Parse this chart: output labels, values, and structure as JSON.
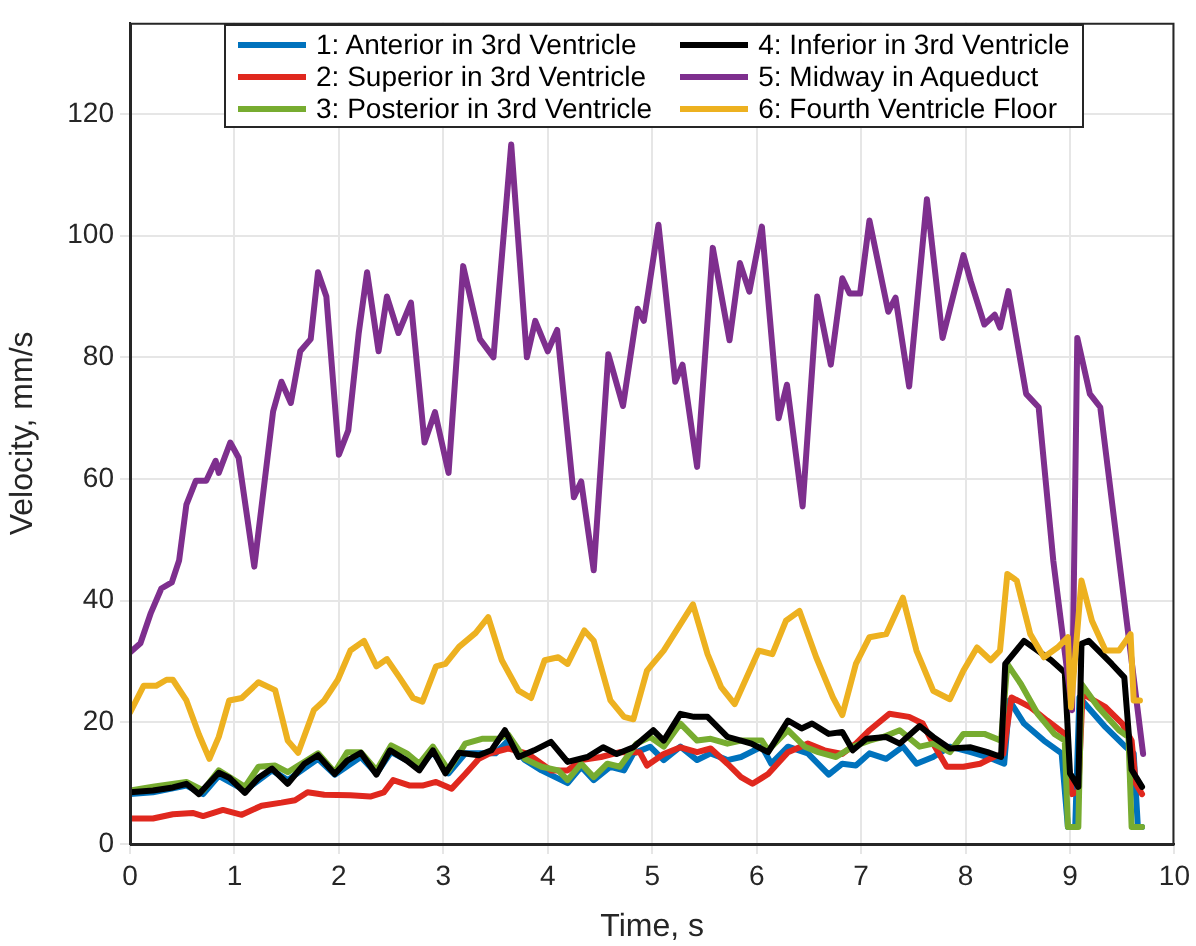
{
  "chart_data": {
    "type": "line",
    "xlabel": "Time, s",
    "ylabel": "Velocity, mm/s",
    "xlim": [
      0,
      10
    ],
    "xticks": [
      0,
      1,
      2,
      3,
      4,
      5,
      6,
      7,
      8,
      9,
      10
    ],
    "ylim": [
      0,
      135
    ],
    "yticks": [
      0,
      20,
      40,
      60,
      80,
      100,
      120
    ],
    "grid": true,
    "legend": "top",
    "line_style": "solid",
    "marker": "none",
    "series": [
      {
        "name": "1: Anterior in 3rd Ventricle",
        "color": "#0072bd",
        "x": [
          0,
          0.22,
          0.54,
          0.7,
          0.85,
          1.1,
          1.36,
          1.51,
          1.8,
          1.96,
          2.21,
          2.36,
          2.5,
          2.77,
          2.9,
          3.05,
          3.21,
          3.5,
          3.62,
          3.78,
          3.94,
          4.19,
          4.32,
          4.44,
          4.6,
          4.73,
          4.82,
          4.98,
          5.11,
          5.27,
          5.43,
          5.56,
          5.72,
          5.85,
          6.05,
          6.14,
          6.3,
          6.49,
          6.69,
          6.82,
          6.95,
          7.08,
          7.24,
          7.4,
          7.53,
          7.69,
          7.85,
          8.05,
          8.21,
          8.37,
          8.42,
          8.56,
          8.75,
          8.92,
          8.98,
          9.05,
          9.09,
          9.34,
          9.53,
          9.61,
          9.65,
          9.69
        ],
        "values": [
          8.2,
          8.5,
          9.6,
          8.2,
          11.2,
          8.8,
          12.1,
          10.5,
          14,
          11.4,
          14.3,
          11.6,
          15.1,
          12.7,
          15.1,
          11.6,
          14.9,
          14.9,
          17,
          13.8,
          12.1,
          10,
          12.7,
          10.5,
          12.7,
          12.1,
          14.9,
          16,
          13.8,
          16,
          13.8,
          14.9,
          13.8,
          14.3,
          16,
          13.2,
          16,
          14.9,
          11.4,
          13.2,
          12.9,
          14.9,
          14,
          16,
          13.2,
          14.3,
          16,
          15.1,
          14.3,
          13.2,
          23.6,
          19.8,
          17,
          14.9,
          2.8,
          2.8,
          24.1,
          19.2,
          16,
          14.9,
          2.8,
          2.8
        ]
      },
      {
        "name": "2: Superior in 3rd Ventricle",
        "color": "#e0281e",
        "x": [
          0,
          0.22,
          0.41,
          0.6,
          0.7,
          0.89,
          1.07,
          1.26,
          1.45,
          1.58,
          1.7,
          1.86,
          2.11,
          2.3,
          2.43,
          2.52,
          2.68,
          2.8,
          2.93,
          3.08,
          3.21,
          3.34,
          3.43,
          3.62,
          3.81,
          4.03,
          4.19,
          4.32,
          4.51,
          4.69,
          4.88,
          4.95,
          5.11,
          5.27,
          5.43,
          5.56,
          5.72,
          5.85,
          5.96,
          6.11,
          6.3,
          6.49,
          6.65,
          6.82,
          6.95,
          7.08,
          7.27,
          7.46,
          7.59,
          7.69,
          7.82,
          7.98,
          8.14,
          8.27,
          8.36,
          8.44,
          8.62,
          8.78,
          8.95,
          9.02,
          9.08,
          9.12,
          9.34,
          9.5,
          9.59,
          9.63,
          9.69
        ],
        "values": [
          4.2,
          4.2,
          4.9,
          5.1,
          4.6,
          5.6,
          4.8,
          6.3,
          6.8,
          7.2,
          8.5,
          8.1,
          8,
          7.8,
          8.5,
          10.5,
          9.6,
          9.6,
          10.2,
          9.1,
          11.5,
          14,
          14.8,
          15.7,
          14.8,
          12.1,
          12.1,
          13.8,
          14.3,
          15.1,
          15.1,
          12.9,
          14.8,
          15.9,
          15.1,
          15.7,
          13.2,
          11,
          9.9,
          11.5,
          15.1,
          16.5,
          15.4,
          14.8,
          16.5,
          18.7,
          21.4,
          20.9,
          19.8,
          16.5,
          12.7,
          12.7,
          13.2,
          14.3,
          14.8,
          24.1,
          22.5,
          20.3,
          18.1,
          8.2,
          8.7,
          24.7,
          22.5,
          19.8,
          17,
          9.9,
          8.2
        ]
      },
      {
        "name": "3: Posterior in 3rd Ventricle",
        "color": "#77ac30",
        "x": [
          0,
          0.22,
          0.54,
          0.7,
          0.85,
          1.1,
          1.23,
          1.39,
          1.51,
          1.64,
          1.8,
          1.96,
          2.08,
          2.21,
          2.36,
          2.5,
          2.65,
          2.77,
          2.9,
          3.05,
          3.21,
          3.37,
          3.53,
          3.62,
          3.78,
          3.94,
          4.1,
          4.19,
          4.32,
          4.44,
          4.57,
          4.69,
          4.85,
          4.98,
          5.11,
          5.27,
          5.43,
          5.56,
          5.72,
          5.85,
          6.05,
          6.11,
          6.3,
          6.46,
          6.59,
          6.76,
          6.92,
          7.08,
          7.21,
          7.37,
          7.56,
          7.69,
          7.85,
          7.98,
          8.18,
          8.34,
          8.4,
          8.53,
          8.69,
          8.85,
          8.95,
          8.98,
          9.08,
          9.11,
          9.27,
          9.47,
          9.56,
          9.59,
          9.69
        ],
        "values": [
          8.8,
          9.4,
          10.2,
          8.8,
          12.1,
          9.4,
          12.7,
          12.9,
          11.8,
          13.2,
          14.9,
          11.8,
          15.1,
          15.1,
          12.1,
          16.2,
          14.9,
          13.2,
          16,
          12.1,
          16.5,
          17.3,
          17.3,
          18,
          14,
          12.7,
          12.1,
          10.5,
          13.2,
          11,
          13.2,
          12.7,
          16.5,
          17.6,
          16,
          19.8,
          17,
          17.3,
          16.5,
          17,
          17,
          15.4,
          18.7,
          16,
          15.1,
          14.3,
          16,
          17,
          17.6,
          18.7,
          16,
          16.5,
          15.1,
          18.1,
          18.1,
          17,
          29.6,
          26.3,
          21.4,
          18.1,
          17,
          2.8,
          2.8,
          26.3,
          22.5,
          18.7,
          17.6,
          2.8,
          2.8
        ]
      },
      {
        "name": "4: Inferior in 3rd Ventricle",
        "color": "#000000",
        "x": [
          0,
          0.22,
          0.41,
          0.54,
          0.66,
          0.85,
          0.95,
          1.1,
          1.23,
          1.36,
          1.51,
          1.67,
          1.8,
          1.96,
          2.08,
          2.21,
          2.36,
          2.49,
          2.65,
          2.77,
          2.9,
          3.02,
          3.15,
          3.34,
          3.46,
          3.59,
          3.72,
          3.87,
          4.03,
          4.19,
          4.38,
          4.53,
          4.66,
          4.82,
          5.01,
          5.11,
          5.27,
          5.4,
          5.53,
          5.72,
          5.85,
          5.95,
          6.11,
          6.3,
          6.43,
          6.53,
          6.69,
          6.82,
          6.92,
          7.05,
          7.24,
          7.37,
          7.56,
          7.69,
          7.85,
          8.05,
          8.21,
          8.34,
          8.38,
          8.56,
          8.82,
          8.95,
          9,
          9.08,
          9.11,
          9.18,
          9.4,
          9.52,
          9.59,
          9.69
        ],
        "values": [
          8.5,
          8.8,
          9.3,
          9.9,
          8.2,
          11.7,
          10.9,
          8.4,
          10.9,
          12.4,
          9.9,
          13.2,
          14.6,
          11.5,
          13.7,
          15,
          11.4,
          15.4,
          13.7,
          12.1,
          15.4,
          11.6,
          15,
          14.6,
          15.4,
          18.7,
          14.3,
          15.4,
          16.8,
          13.5,
          14.3,
          15.9,
          14.8,
          15.9,
          18.7,
          17,
          21.4,
          20.9,
          20.9,
          17.6,
          17,
          16.5,
          15.1,
          20.3,
          19,
          19.8,
          18.1,
          18.4,
          15.4,
          17.3,
          17.6,
          16.5,
          19.4,
          17.6,
          15.7,
          15.9,
          15.1,
          14.3,
          29.6,
          33.4,
          30.2,
          28.2,
          11.6,
          9.4,
          32.9,
          33.4,
          29.6,
          27.4,
          12.2,
          9.4
        ]
      },
      {
        "name": "5: Midway in Aqueduct",
        "color": "#7e2f8e",
        "x": [
          0,
          0.1,
          0.2,
          0.3,
          0.4,
          0.47,
          0.54,
          0.63,
          0.73,
          0.82,
          0.85,
          0.96,
          1.04,
          1.19,
          1.37,
          1.45,
          1.54,
          1.63,
          1.73,
          1.8,
          1.88,
          2,
          2.09,
          2.19,
          2.27,
          2.38,
          2.46,
          2.57,
          2.69,
          2.82,
          2.92,
          3.05,
          3.19,
          3.35,
          3.48,
          3.65,
          3.8,
          3.88,
          4,
          4.09,
          4.25,
          4.32,
          4.44,
          4.58,
          4.72,
          4.86,
          4.92,
          5.06,
          5.22,
          5.29,
          5.43,
          5.58,
          5.74,
          5.84,
          5.93,
          6.05,
          6.21,
          6.29,
          6.44,
          6.58,
          6.71,
          6.82,
          6.89,
          6.99,
          7.08,
          7.26,
          7.33,
          7.46,
          7.63,
          7.78,
          7.98,
          8.05,
          8.18,
          8.28,
          8.33,
          8.41,
          8.58,
          8.7,
          8.84,
          9.02,
          9.07,
          9.19,
          9.29,
          9.7
        ],
        "values": [
          31.5,
          33,
          38,
          42,
          43,
          46.6,
          55.8,
          59.7,
          59.7,
          63,
          61,
          66,
          63.5,
          45.6,
          71.1,
          76,
          72.5,
          81,
          83,
          94,
          90,
          64,
          68,
          84,
          94,
          81,
          90,
          84,
          89,
          66,
          71,
          61,
          95,
          83,
          80,
          115,
          80,
          86,
          81,
          84.5,
          57,
          59.6,
          45,
          80.5,
          72,
          88,
          86,
          101.8,
          76,
          78.8,
          62,
          98,
          82.8,
          95.5,
          90.8,
          101.5,
          70,
          75.5,
          55.5,
          90,
          78.8,
          93,
          90.5,
          90.5,
          102.5,
          87.5,
          89.8,
          75.2,
          106,
          83.2,
          96.8,
          92.5,
          85.4,
          87,
          84.9,
          90.9,
          74,
          71.8,
          46.6,
          22,
          83.2,
          74,
          71.8,
          14.8
        ]
      },
      {
        "name": "6: Fourth Ventricle Floor",
        "color": "#edb120",
        "x": [
          0,
          0.13,
          0.25,
          0.35,
          0.41,
          0.54,
          0.66,
          0.76,
          0.85,
          0.95,
          1.07,
          1.23,
          1.39,
          1.51,
          1.61,
          1.76,
          1.86,
          1.99,
          2.11,
          2.24,
          2.36,
          2.46,
          2.58,
          2.71,
          2.8,
          2.93,
          3.02,
          3.15,
          3.31,
          3.43,
          3.56,
          3.72,
          3.84,
          3.97,
          4.1,
          4.19,
          4.35,
          4.44,
          4.6,
          4.73,
          4.82,
          4.95,
          5.11,
          5.39,
          5.53,
          5.66,
          5.79,
          5.92,
          6.02,
          6.15,
          6.28,
          6.41,
          6.57,
          6.73,
          6.82,
          6.95,
          7.08,
          7.24,
          7.4,
          7.53,
          7.69,
          7.85,
          7.98,
          8.11,
          8.24,
          8.33,
          8.4,
          8.49,
          8.62,
          8.75,
          8.88,
          8.98,
          9.01,
          9.11,
          9.21,
          9.34,
          9.47,
          9.58,
          9.61,
          9.67
        ],
        "values": [
          21.6,
          26,
          26,
          27,
          27,
          23.6,
          18,
          14,
          17.6,
          23.6,
          24,
          26.6,
          25.3,
          17,
          15,
          22,
          23.6,
          27,
          31.8,
          33.4,
          29.2,
          30.4,
          27.4,
          24,
          23.4,
          29.2,
          29.6,
          32.4,
          34.7,
          37.3,
          30.2,
          25.2,
          24,
          30.2,
          30.7,
          29.6,
          35.1,
          33.4,
          23.6,
          20.9,
          20.5,
          28.5,
          31.8,
          39.4,
          31.2,
          25.8,
          23,
          28,
          31.8,
          31.2,
          36.7,
          38.3,
          30.7,
          24.1,
          21.2,
          29.6,
          34,
          34.5,
          40.5,
          31.8,
          25.2,
          23.8,
          28.5,
          32.3,
          30.2,
          31.8,
          44.4,
          43.3,
          34.5,
          30.7,
          32.3,
          34,
          22.5,
          43.3,
          36.7,
          31.8,
          31.8,
          34.5,
          23.6,
          23.6
        ]
      }
    ]
  }
}
